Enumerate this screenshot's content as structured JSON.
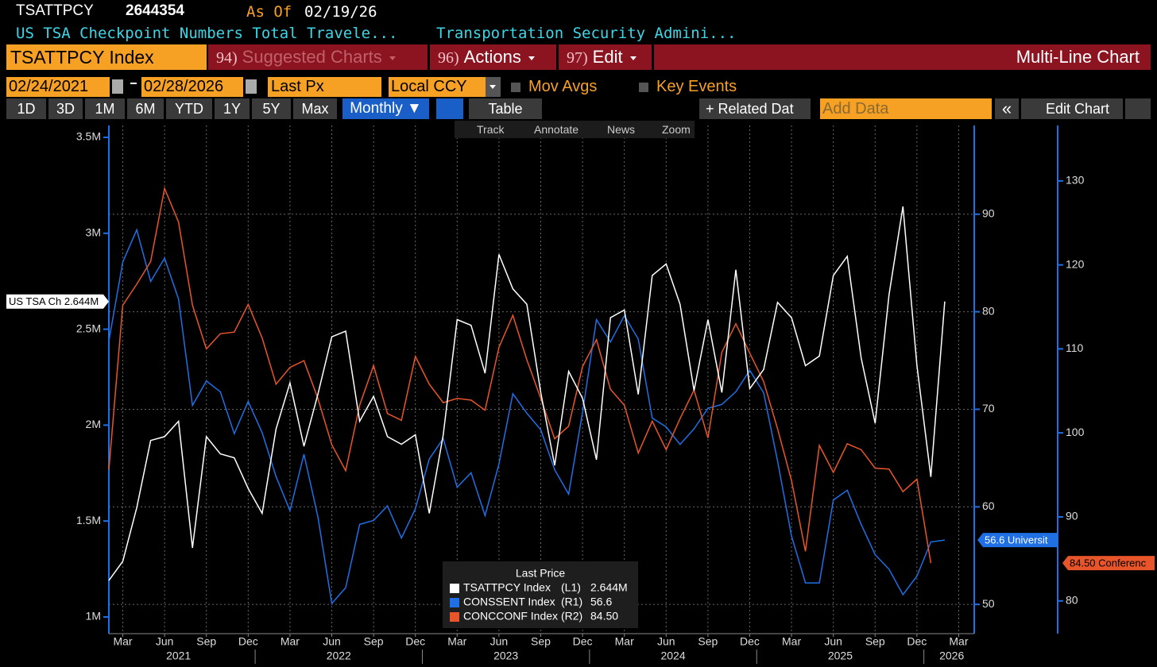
{
  "header": {
    "ticker": "TSATTPCY",
    "price": "2644354",
    "as_of_label": "As Of",
    "as_of_date": "02/19/26",
    "description": "US TSA Checkpoint Numbers Total Travele...",
    "source": "Transportation Security Admini..."
  },
  "toolbar": {
    "security": "TSATTPCY Index",
    "menus": [
      {
        "num": "94)",
        "label": "Suggested Charts"
      },
      {
        "num": "96)",
        "label": "Actions"
      },
      {
        "num": "97)",
        "label": "Edit"
      }
    ],
    "chart_kind": "Multi-Line Chart",
    "start_date": "02/24/2021",
    "end_date": "02/28/2026",
    "field": "Last Px",
    "currency": "Local CCY",
    "options": [
      "Mov Avgs",
      "Key Events"
    ],
    "periods": [
      "1D",
      "3D",
      "1M",
      "6M",
      "YTD",
      "1Y",
      "5Y",
      "Max"
    ],
    "frequency": "Monthly ▼",
    "table": "Table",
    "related": "+ Related Dat",
    "add_data": "Add Data",
    "collapse": "«",
    "edit_chart": "Edit Chart",
    "tools": [
      "Track",
      "Annotate",
      "News",
      "Zoom"
    ]
  },
  "chart_data": {
    "type": "line",
    "legend_title": "Last Price",
    "x": [
      "2021-02",
      "2021-03",
      "2021-04",
      "2021-05",
      "2021-06",
      "2021-07",
      "2021-08",
      "2021-09",
      "2021-10",
      "2021-11",
      "2021-12",
      "2022-01",
      "2022-02",
      "2022-03",
      "2022-04",
      "2022-05",
      "2022-06",
      "2022-07",
      "2022-08",
      "2022-09",
      "2022-10",
      "2022-11",
      "2022-12",
      "2023-01",
      "2023-02",
      "2023-03",
      "2023-04",
      "2023-05",
      "2023-06",
      "2023-07",
      "2023-08",
      "2023-09",
      "2023-10",
      "2023-11",
      "2023-12",
      "2024-01",
      "2024-02",
      "2024-03",
      "2024-04",
      "2024-05",
      "2024-06",
      "2024-07",
      "2024-08",
      "2024-09",
      "2024-10",
      "2024-11",
      "2024-12",
      "2025-01",
      "2025-02",
      "2025-03",
      "2025-04",
      "2025-05",
      "2025-06",
      "2025-07",
      "2025-08",
      "2025-09",
      "2025-10",
      "2025-11",
      "2025-12",
      "2026-01",
      "2026-02"
    ],
    "xlim": [
      "2021-02",
      "2026-04"
    ],
    "xticks": [
      {
        "value": "2021-03",
        "label": "Mar"
      },
      {
        "value": "2021-06",
        "label": "Jun"
      },
      {
        "value": "2021-09",
        "label": "Sep"
      },
      {
        "value": "2021-12",
        "label": "Dec"
      },
      {
        "value": "2022-03",
        "label": "Mar"
      },
      {
        "value": "2022-06",
        "label": "Jun"
      },
      {
        "value": "2022-09",
        "label": "Sep"
      },
      {
        "value": "2022-12",
        "label": "Dec"
      },
      {
        "value": "2023-03",
        "label": "Mar"
      },
      {
        "value": "2023-06",
        "label": "Jun"
      },
      {
        "value": "2023-09",
        "label": "Sep"
      },
      {
        "value": "2023-12",
        "label": "Dec"
      },
      {
        "value": "2024-03",
        "label": "Mar"
      },
      {
        "value": "2024-06",
        "label": "Jun"
      },
      {
        "value": "2024-09",
        "label": "Sep"
      },
      {
        "value": "2024-12",
        "label": "Dec"
      },
      {
        "value": "2025-03",
        "label": "Mar"
      },
      {
        "value": "2025-06",
        "label": "Jun"
      },
      {
        "value": "2025-09",
        "label": "Sep"
      },
      {
        "value": "2025-12",
        "label": "Dec"
      },
      {
        "value": "2026-03",
        "label": "Mar"
      }
    ],
    "x_years": [
      "2021",
      "2022",
      "2023",
      "2024",
      "2025",
      "2026"
    ],
    "ylim": [
      913000,
      3562000
    ],
    "yticks": [
      {
        "value": 1000000,
        "label": "1M"
      },
      {
        "value": 1500000,
        "label": "1.5M"
      },
      {
        "value": 2000000,
        "label": "2M"
      },
      {
        "value": 2500000,
        "label": "2.5M"
      },
      {
        "value": 3000000,
        "label": "3M"
      },
      {
        "value": 3500000,
        "label": "3.5M"
      }
    ],
    "y2lim": [
      47,
      99.1
    ],
    "y2ticks": [
      50,
      60,
      70,
      80,
      90
    ],
    "y3lim": [
      76.1,
      136.6
    ],
    "y3ticks": [
      80,
      90,
      100,
      110,
      120,
      130
    ],
    "grid": true,
    "grid_axis": "y2",
    "series": [
      {
        "name": "TSATTPCY Index",
        "legend_axis": "(L1)",
        "last_label": "2.644M",
        "tag": "US TSA Ch 2.644M",
        "color": "#ffffff",
        "axis": "y",
        "values": [
          1190000,
          1290000,
          1570000,
          1920000,
          1940000,
          2020000,
          1360000,
          1940000,
          1850000,
          1830000,
          1670000,
          1540000,
          1980000,
          2220000,
          1890000,
          2160000,
          2460000,
          2490000,
          2020000,
          2150000,
          1940000,
          1900000,
          1950000,
          1540000,
          1950000,
          2550000,
          2520000,
          2270000,
          2890000,
          2710000,
          2630000,
          2170000,
          1790000,
          2280000,
          2140000,
          1820000,
          2560000,
          2600000,
          2160000,
          2780000,
          2840000,
          2630000,
          2180000,
          2550000,
          2170000,
          2810000,
          2190000,
          2290000,
          2640000,
          2560000,
          2310000,
          2360000,
          2780000,
          2880000,
          2350000,
          2010000,
          2680000,
          3140000,
          2310000,
          1730000,
          2644354
        ]
      },
      {
        "name": "CONSSENT Index",
        "legend_axis": "(R1)",
        "last_label": "56.6",
        "tag": "56.6 Universit",
        "color": "#1f6fe5",
        "axis": "y2",
        "values": [
          77.0,
          85.1,
          88.4,
          83.1,
          85.5,
          81.3,
          70.4,
          72.9,
          71.8,
          67.5,
          70.8,
          67.6,
          63.1,
          59.6,
          65.4,
          59.0,
          50.1,
          51.7,
          58.2,
          58.6,
          60.1,
          56.8,
          59.8,
          64.9,
          67.0,
          62.0,
          63.5,
          59.1,
          64.4,
          71.6,
          69.6,
          67.9,
          63.8,
          61.3,
          69.7,
          79.2,
          76.9,
          79.6,
          77.2,
          69.1,
          68.2,
          66.4,
          68.0,
          70.1,
          70.5,
          71.8,
          74.0,
          71.7,
          64.7,
          57.0,
          52.2,
          52.2,
          60.7,
          61.7,
          58.2,
          55.1,
          53.6,
          51.0,
          52.9,
          56.4,
          56.6
        ]
      },
      {
        "name": "CONCCONF Index",
        "legend_axis": "(R2)",
        "last_label": "84.50",
        "tag": "84.50 Conferenc",
        "color": "#e8552a",
        "axis": "y3",
        "values": [
          95.6,
          115.2,
          117.7,
          120.4,
          129.1,
          125.1,
          115.2,
          110.0,
          111.8,
          112.0,
          115.3,
          111.3,
          105.8,
          107.8,
          108.6,
          104.1,
          98.6,
          95.5,
          103.3,
          108.0,
          102.3,
          101.5,
          109.1,
          105.8,
          103.6,
          104.1,
          103.9,
          102.7,
          110.2,
          114.0,
          108.7,
          104.1,
          99.3,
          100.8,
          107.9,
          111.1,
          105.2,
          103.3,
          97.6,
          101.4,
          98.0,
          101.7,
          105.1,
          99.4,
          109.6,
          113.0,
          109.5,
          106.1,
          100.5,
          94.3,
          85.9,
          98.5,
          95.3,
          98.7,
          98.0,
          95.8,
          95.7,
          93.0,
          94.5,
          84.5,
          null
        ]
      }
    ]
  }
}
